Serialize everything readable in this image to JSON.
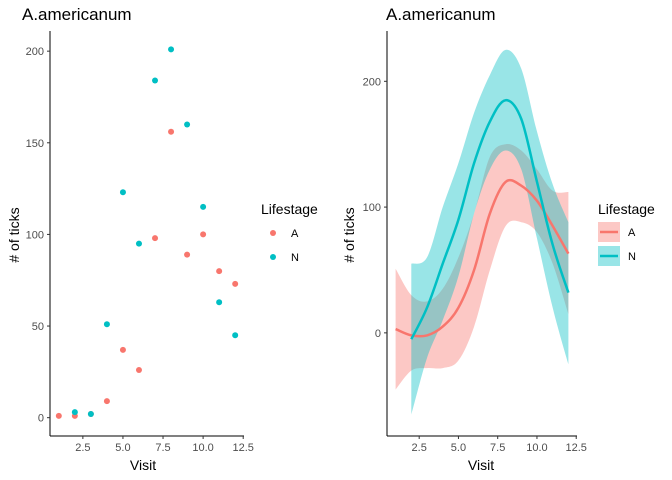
{
  "chart_data": [
    {
      "type": "scatter",
      "title": "A.americanum",
      "xlabel": "Visit",
      "ylabel": "# of ticks",
      "xlim": [
        0.45,
        12.55
      ],
      "ylim": [
        -10,
        211
      ],
      "xticks": [
        "2.5",
        "5.0",
        "7.5",
        "10.0",
        "12.5"
      ],
      "xtick_values": [
        2.5,
        5.0,
        7.5,
        10.0,
        12.5
      ],
      "yticks": [
        "0",
        "50",
        "100",
        "150",
        "200"
      ],
      "ytick_values": [
        0,
        50,
        100,
        150,
        200
      ],
      "grid": false,
      "legend": {
        "title": "Lifestage",
        "placement": "right"
      },
      "series": [
        {
          "name": "A",
          "color": "#F8766D",
          "points": [
            [
              1,
              1
            ],
            [
              2,
              1
            ],
            [
              3,
              2
            ],
            [
              4,
              9
            ],
            [
              5,
              37
            ],
            [
              6,
              26
            ],
            [
              7,
              98
            ],
            [
              8,
              156
            ],
            [
              9,
              89
            ],
            [
              10,
              100
            ],
            [
              11,
              80
            ],
            [
              12,
              73
            ]
          ]
        },
        {
          "name": "N",
          "color": "#00BFC4",
          "points": [
            [
              2,
              3
            ],
            [
              3,
              2
            ],
            [
              4,
              51
            ],
            [
              5,
              123
            ],
            [
              6,
              95
            ],
            [
              7,
              184
            ],
            [
              8,
              201
            ],
            [
              9,
              160
            ],
            [
              10,
              115
            ],
            [
              11,
              63
            ],
            [
              12,
              45
            ]
          ]
        }
      ]
    },
    {
      "type": "line",
      "title": "A.americanum",
      "xlabel": "Visit",
      "ylabel": "# of ticks",
      "xlim": [
        0.45,
        12.55
      ],
      "ylim": [
        -82,
        240
      ],
      "xticks": [
        "2.5",
        "5.0",
        "7.5",
        "10.0",
        "12.5"
      ],
      "xtick_values": [
        2.5,
        5.0,
        7.5,
        10.0,
        12.5
      ],
      "yticks": [
        "0",
        "100",
        "200"
      ],
      "ytick_values": [
        0,
        100,
        200
      ],
      "grid": false,
      "smoothed": true,
      "confidence_band": true,
      "legend": {
        "title": "Lifestage",
        "placement": "right"
      },
      "series": [
        {
          "name": "A",
          "color": "#F8766D",
          "x": [
            1,
            2,
            3,
            4,
            5,
            6,
            7,
            8,
            9,
            10,
            11,
            12
          ],
          "y": [
            3,
            -2,
            -2,
            5,
            20,
            50,
            95,
            120,
            117,
            105,
            85,
            63
          ],
          "lower": [
            -45,
            -30,
            -28,
            -28,
            -22,
            5,
            50,
            85,
            88,
            80,
            55,
            15
          ],
          "upper": [
            51,
            30,
            25,
            35,
            60,
            95,
            140,
            150,
            145,
            130,
            113,
            112
          ]
        },
        {
          "name": "N",
          "color": "#00BFC4",
          "x": [
            2,
            3,
            4,
            5,
            6,
            7,
            8,
            9,
            10,
            11,
            12
          ],
          "y": [
            -5,
            20,
            55,
            90,
            135,
            168,
            185,
            170,
            120,
            70,
            32
          ],
          "lower": [
            -65,
            -20,
            10,
            45,
            95,
            130,
            145,
            130,
            75,
            20,
            -25
          ],
          "upper": [
            55,
            60,
            100,
            135,
            175,
            205,
            225,
            210,
            160,
            118,
            88
          ]
        }
      ]
    }
  ]
}
